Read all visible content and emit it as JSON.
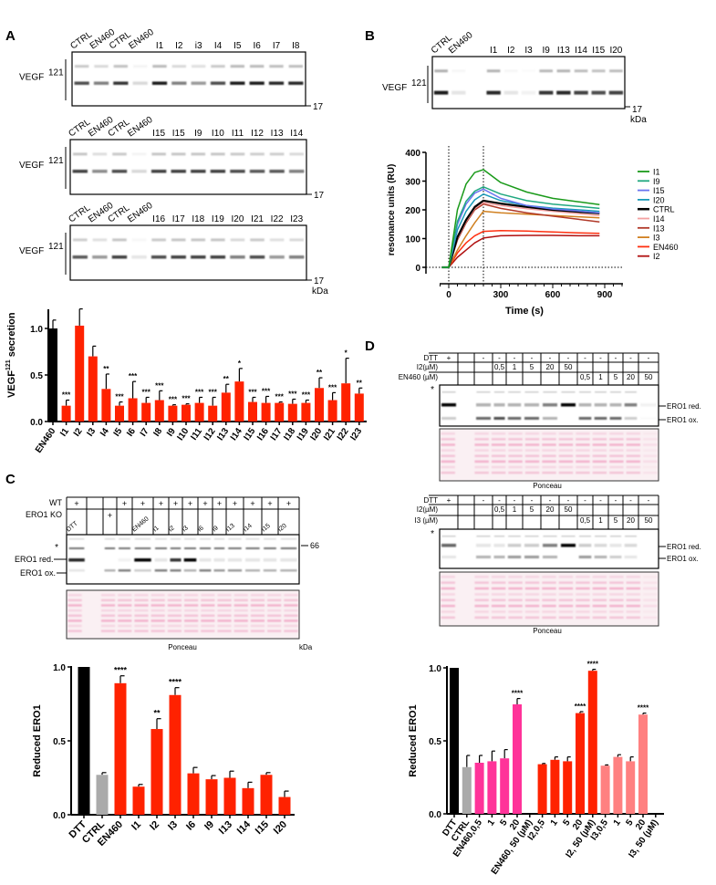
{
  "panels": {
    "A": "A",
    "B": "B",
    "C": "C",
    "D": "D"
  },
  "panel_a": {
    "protein_label": "VEGF",
    "protein_sup": "121",
    "marker": "17",
    "unit": "kDa",
    "blots": [
      {
        "lanes": [
          "CTRL",
          "EN460",
          "CTRL",
          "EN460",
          "I1",
          "I2",
          "i3",
          "I4",
          "I5",
          "I6",
          "I7",
          "I8"
        ],
        "intensity": [
          0.7,
          0.5,
          0.8,
          0.15,
          0.9,
          0.5,
          0.4,
          0.7,
          0.9,
          0.9,
          0.85,
          0.85
        ]
      },
      {
        "lanes": [
          "CTRL",
          "EN460",
          "CTRL",
          "EN460",
          "I15",
          "I15",
          "I9",
          "I10",
          "I11",
          "I12",
          "I13",
          "I14"
        ],
        "intensity": [
          0.75,
          0.45,
          0.7,
          0.15,
          0.75,
          0.75,
          0.75,
          0.75,
          0.7,
          0.65,
          0.65,
          0.5
        ]
      },
      {
        "lanes": [
          "CTRL",
          "EN460",
          "CTRL",
          "EN460",
          "I16",
          "I17",
          "I18",
          "I19",
          "I20",
          "I21",
          "I22",
          "I23"
        ],
        "intensity": [
          0.65,
          0.4,
          0.75,
          0.1,
          0.7,
          0.75,
          0.75,
          0.75,
          0.5,
          0.7,
          0.4,
          0.5
        ]
      }
    ]
  },
  "panel_b": {
    "protein_label": "VEGF",
    "protein_sup": "121",
    "marker": "17",
    "unit": "kDa",
    "blot": {
      "lanes": [
        "CTRL",
        "EN460",
        "I1",
        "I2",
        "I3",
        "I9",
        "I13",
        "I14",
        "I15",
        "I20"
      ],
      "intensity": [
        0.9,
        0.1,
        0.85,
        0.1,
        0.05,
        0.8,
        0.85,
        0.75,
        0.7,
        0.75
      ]
    }
  },
  "panel_c": {
    "row_labels": [
      "WT",
      "ERO1 KO"
    ],
    "wt": [
      "+",
      "",
      "",
      "+",
      "+",
      "+",
      "+",
      "+",
      "+",
      "+",
      "+",
      "+",
      "+",
      "+"
    ],
    "ko": [
      "",
      "",
      "+",
      "",
      "",
      "",
      "",
      "",
      "",
      "",
      "",
      "",
      "",
      ""
    ],
    "lanes": [
      "DTT",
      "",
      "",
      "",
      "EN460",
      "I1",
      "I2",
      "I3",
      "I6",
      "I9",
      "I13",
      "I14",
      "I15",
      "I20"
    ],
    "red": [
      0.85,
      0,
      0,
      0.05,
      1,
      0.1,
      0.8,
      1,
      0.1,
      0.1,
      0.1,
      0.1,
      0.1,
      0.1
    ],
    "ox": [
      0.1,
      0,
      0.3,
      0.5,
      0.2,
      0.5,
      0.5,
      0.3,
      0.5,
      0.4,
      0.4,
      0.3,
      0.3,
      0.3
    ],
    "star": "*",
    "red_label": "ERO1 red.",
    "ox_label": "ERO1 ox.",
    "marker": "66",
    "ponceau": "Ponceau",
    "unit": "kDa"
  },
  "panel_d": {
    "star": "*",
    "red_label": "ERO1 red.",
    "ox_label": "ERO1 ox.",
    "ponceau": "Ponceau",
    "blots": [
      {
        "rows": [
          {
            "label": "DTT",
            "cells": [
              "+",
              "",
              "-",
              "-",
              "-",
              "-",
              "-",
              "-",
              "-",
              "-",
              "-",
              "-",
              "-"
            ]
          },
          {
            "label": "I2(µM)",
            "cells": [
              "",
              "",
              "",
              "0,5",
              "1",
              "5",
              "20",
              "50",
              "",
              "",
              "",
              "",
              ""
            ]
          },
          {
            "label": "EN460 (µM)",
            "cells": [
              "",
              "",
              "",
              "",
              "",
              "",
              "",
              "",
              "0,5",
              "1",
              "5",
              "20",
              "50"
            ]
          }
        ],
        "red": [
          1,
          0,
          0.3,
          0.3,
          0.3,
          0.3,
          0.5,
          1,
          0.3,
          0.3,
          0.3,
          0.5,
          0.05
        ],
        "ox": [
          0.2,
          0,
          0.6,
          0.7,
          0.6,
          0.6,
          0.3,
          0,
          0.6,
          0.6,
          0.6,
          0.2,
          0.02
        ]
      },
      {
        "rows": [
          {
            "label": "DTT",
            "cells": [
              "+",
              "",
              "-",
              "-",
              "-",
              "-",
              "-",
              "-",
              "-",
              "-",
              "-",
              "-",
              "-"
            ]
          },
          {
            "label": "I2(µM)",
            "cells": [
              "",
              "",
              "",
              "0,5",
              "1",
              "5",
              "20",
              "50",
              "",
              "",
              "",
              "",
              ""
            ]
          },
          {
            "label": "I3 (µM)",
            "cells": [
              "",
              "",
              "",
              "",
              "",
              "",
              "",
              "",
              "0,5",
              "1",
              "5",
              "20",
              "50"
            ]
          }
        ],
        "red": [
          0.6,
          0,
          0.1,
          0.1,
          0.2,
          0.2,
          0.5,
          1,
          0.2,
          0.15,
          0.1,
          0.15,
          0
        ],
        "ox": [
          0.1,
          0,
          0.3,
          0.3,
          0.4,
          0.4,
          0.3,
          0,
          0.4,
          0.3,
          0.2,
          0.1,
          0
        ]
      }
    ]
  },
  "chart_data": [
    {
      "type": "bar",
      "panel": "A",
      "ylabel": "VEGF",
      "ylabel_sup": "121",
      "ylabel_rest": " secretion",
      "ylim": [
        0,
        1.2
      ],
      "yticks": [
        "0.0",
        "0.5",
        "1.0"
      ],
      "ytick_values": [
        0,
        0.5,
        1.0
      ],
      "categories": [
        "EN460",
        "I1",
        "I2",
        "I3",
        "I4",
        "I5",
        "I6",
        "I7",
        "I8",
        "I9",
        "I10",
        "I11",
        "I12",
        "I13",
        "I14",
        "I15",
        "I16",
        "I17",
        "I18",
        "I19",
        "I20",
        "I21",
        "I22",
        "I23"
      ],
      "values": [
        1.0,
        0.17,
        1.03,
        0.7,
        0.35,
        0.17,
        0.25,
        0.2,
        0.23,
        0.17,
        0.18,
        0.2,
        0.17,
        0.31,
        0.43,
        0.21,
        0.2,
        0.2,
        0.19,
        0.2,
        0.36,
        0.23,
        0.41,
        0.3
      ],
      "errors": [
        0.09,
        0.06,
        0.18,
        0.11,
        0.16,
        0.04,
        0.18,
        0.06,
        0.1,
        0.01,
        0.01,
        0.06,
        0.09,
        0.09,
        0.14,
        0.05,
        0.07,
        0.01,
        0.05,
        0.03,
        0.11,
        0.08,
        0.27,
        0.06
      ],
      "significance": [
        "",
        "***",
        "",
        "",
        "**",
        "***",
        "***",
        "***",
        "***",
        "***",
        "***",
        "***",
        "***",
        "**",
        "*",
        "***",
        "***",
        "***",
        "***",
        "***",
        "**",
        "***",
        "*",
        "**"
      ],
      "colors": [
        "#000000",
        "#ff2200",
        "#ff2200",
        "#ff2200",
        "#ff2200",
        "#ff2200",
        "#ff2200",
        "#ff2200",
        "#ff2200",
        "#ff2200",
        "#ff2200",
        "#ff2200",
        "#ff2200",
        "#ff2200",
        "#ff2200",
        "#ff2200",
        "#ff2200",
        "#ff2200",
        "#ff2200",
        "#ff2200",
        "#ff2200",
        "#ff2200",
        "#ff2200",
        "#ff2200"
      ]
    },
    {
      "type": "line",
      "panel": "B",
      "xlabel": "Time (s)",
      "ylabel": "resonance units (RU)",
      "xlim": [
        -50,
        1000
      ],
      "ylim": [
        0,
        400
      ],
      "xticks": [
        "0",
        "300",
        "600",
        "900"
      ],
      "xtick_values": [
        0,
        300,
        600,
        900
      ],
      "yticks": [
        "0",
        "100",
        "200",
        "300",
        "400"
      ],
      "ytick_values": [
        0,
        100,
        200,
        300,
        400
      ],
      "reference_lines": {
        "x": [
          0,
          200
        ],
        "y": [
          0
        ]
      },
      "legend_position": "right",
      "x": [
        -40,
        0,
        50,
        100,
        150,
        200,
        300,
        450,
        600,
        750,
        870
      ],
      "series": [
        {
          "name": "I1",
          "color": "#1a9a1a",
          "values": [
            0,
            0,
            200,
            290,
            330,
            340,
            295,
            262,
            240,
            228,
            218
          ]
        },
        {
          "name": "I9",
          "color": "#20a880",
          "values": [
            0,
            0,
            160,
            230,
            265,
            280,
            255,
            232,
            220,
            212,
            205
          ]
        },
        {
          "name": "I15",
          "color": "#6a74f0",
          "values": [
            0,
            0,
            150,
            220,
            258,
            272,
            240,
            215,
            203,
            196,
            190
          ]
        },
        {
          "name": "I20",
          "color": "#1a9ab8",
          "values": [
            0,
            0,
            130,
            195,
            235,
            255,
            232,
            215,
            206,
            200,
            195
          ]
        },
        {
          "name": "CTRL",
          "color": "#000000",
          "values": [
            0,
            0,
            105,
            165,
            210,
            232,
            222,
            210,
            200,
            193,
            188
          ]
        },
        {
          "name": "I14",
          "color": "#f4a0a0",
          "values": [
            0,
            0,
            100,
            160,
            205,
            225,
            215,
            204,
            195,
            187,
            180
          ]
        },
        {
          "name": "I13",
          "color": "#b03828",
          "values": [
            0,
            0,
            95,
            155,
            200,
            220,
            205,
            190,
            178,
            167,
            158
          ]
        },
        {
          "name": "I3",
          "color": "#d08020",
          "values": [
            0,
            0,
            60,
            110,
            155,
            195,
            190,
            185,
            180,
            176,
            172
          ]
        },
        {
          "name": "EN460",
          "color": "#ff3010",
          "values": [
            0,
            0,
            50,
            85,
            110,
            125,
            128,
            126,
            123,
            120,
            118
          ]
        },
        {
          "name": "I2",
          "color": "#b01010",
          "values": [
            0,
            0,
            35,
            60,
            85,
            102,
            110,
            111,
            111,
            110,
            110
          ]
        }
      ]
    },
    {
      "type": "bar",
      "panel": "C",
      "ylabel": "Reduced ERO1",
      "ylim": [
        0,
        1.0
      ],
      "yticks": [
        "0.0",
        "0.5",
        "1.0"
      ],
      "ytick_values": [
        0,
        0.5,
        1.0
      ],
      "categories": [
        "DTT",
        "CTRL",
        "EN460",
        "I1",
        "I2",
        "I3",
        "I6",
        "I9",
        "I13",
        "I14",
        "I15",
        "I20"
      ],
      "values": [
        1.0,
        0.27,
        0.89,
        0.19,
        0.58,
        0.81,
        0.28,
        0.24,
        0.25,
        0.18,
        0.27,
        0.12
      ],
      "errors": [
        0,
        0.015,
        0.05,
        0.015,
        0.07,
        0.05,
        0.04,
        0.025,
        0.045,
        0.04,
        0.015,
        0.04
      ],
      "significance": [
        "",
        "",
        "****",
        "",
        "**",
        "****",
        "",
        "",
        "",
        "",
        "",
        ""
      ],
      "colors": [
        "#000000",
        "#aaaaaa",
        "#ff2200",
        "#ff2200",
        "#ff2200",
        "#ff2200",
        "#ff2200",
        "#ff2200",
        "#ff2200",
        "#ff2200",
        "#ff2200",
        "#ff2200"
      ]
    },
    {
      "type": "bar",
      "panel": "D",
      "ylabel": "Reduced ERO1",
      "ylim": [
        0,
        1.0
      ],
      "yticks": [
        "0.0",
        "0.5",
        "1.0"
      ],
      "ytick_values": [
        0,
        0.5,
        1.0
      ],
      "categories": [
        "DTT",
        "CTRL",
        "EN460,0,5",
        "1",
        "5",
        "20",
        "EN460, 50 (µM)",
        "I2,0,5",
        "1",
        "5",
        "20",
        "I2, 50 (µM)",
        "I3,0,5",
        "1",
        "5",
        "20",
        "I3, 50 (µM)"
      ],
      "values": [
        1.0,
        0.32,
        0.35,
        0.36,
        0.38,
        0.75,
        null,
        0.34,
        0.37,
        0.36,
        0.69,
        0.98,
        0.33,
        0.39,
        0.36,
        0.68,
        null
      ],
      "errors": [
        0,
        0.08,
        0.05,
        0.07,
        0.06,
        0.04,
        null,
        0.005,
        0.02,
        0.03,
        0.01,
        0.01,
        0.005,
        0.015,
        0.03,
        0.01,
        null
      ],
      "significance": [
        "",
        "",
        "",
        "",
        "",
        "****",
        "",
        "",
        "",
        "",
        "****",
        "****",
        "",
        "",
        "",
        "****",
        ""
      ],
      "colors": [
        "#000000",
        "#aaaaaa",
        "#ff3399",
        "#ff3399",
        "#ff3399",
        "#ff3399",
        "#ff3399",
        "#ff2200",
        "#ff2200",
        "#ff2200",
        "#ff2200",
        "#ff2200",
        "#ff8080",
        "#ff8080",
        "#ff8080",
        "#ff8080",
        "#ff8080"
      ]
    }
  ]
}
